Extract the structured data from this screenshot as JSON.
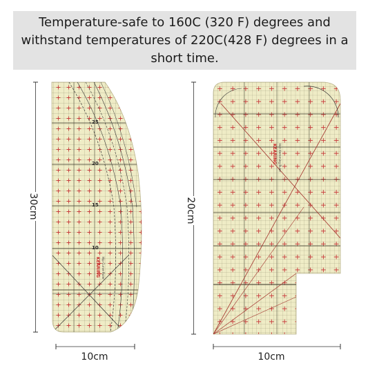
{
  "banner": {
    "line1": "Temperature-safe to 160C (320 F) degrees and",
    "line2": "withstand temperatures of 220C(428 F) degrees in a",
    "line3": "short time."
  },
  "left_ruler": {
    "height_label": "30cm",
    "width_label": "10cm",
    "tick_labels": [
      "25",
      "20",
      "15",
      "10"
    ],
    "brand": "KEARING",
    "sub_label": "Hip Curve Ruler"
  },
  "right_ruler": {
    "height_label": "20cm",
    "width_label": "10cm",
    "brand": "KEARING",
    "sub_label": "Hot Hemming Ruler"
  },
  "colors": {
    "ruler_fill": "#efecc6",
    "grid_line": "#4a4a3a",
    "cross_mark": "#c73a3a",
    "banner_bg": "#e3e3e3"
  }
}
